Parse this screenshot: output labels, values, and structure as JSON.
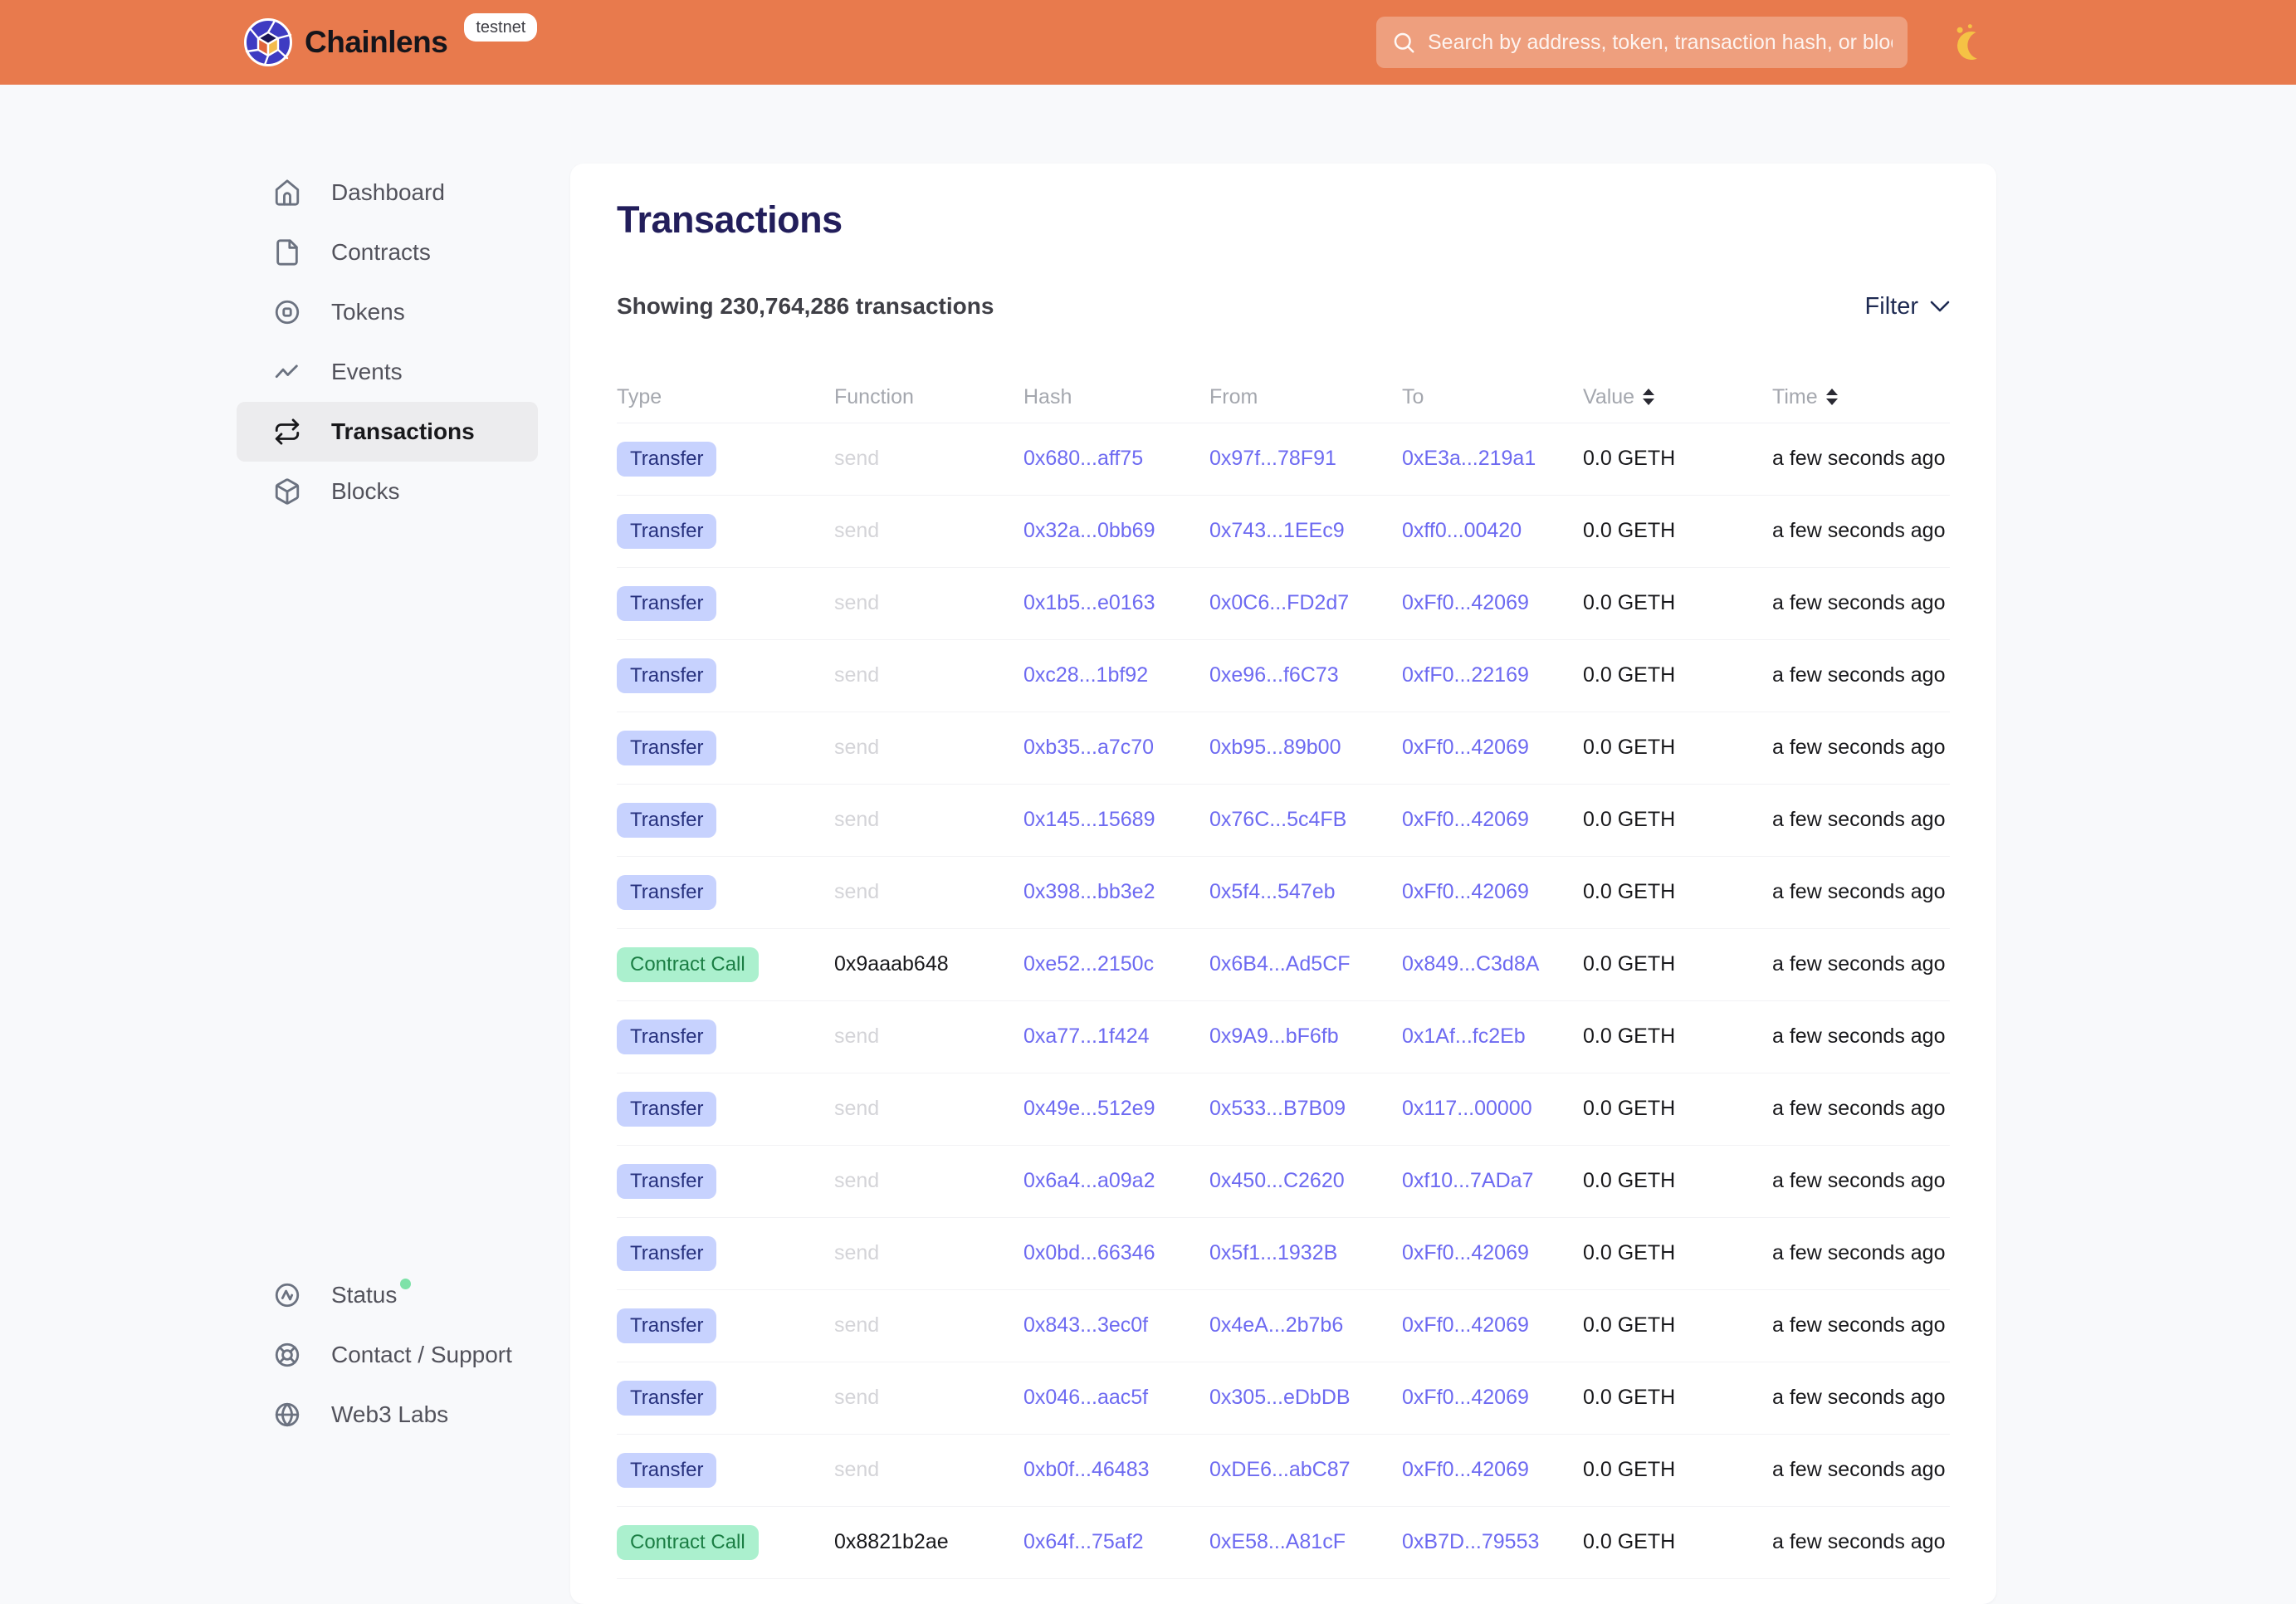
{
  "header": {
    "brand": "Chainlens",
    "badge": "testnet",
    "search_placeholder": "Search by address, token, transaction hash, or block number"
  },
  "sidebar": {
    "items": [
      {
        "label": "Dashboard",
        "icon": "home",
        "active": false
      },
      {
        "label": "Contracts",
        "icon": "document",
        "active": false
      },
      {
        "label": "Tokens",
        "icon": "token",
        "active": false
      },
      {
        "label": "Events",
        "icon": "activity",
        "active": false
      },
      {
        "label": "Transactions",
        "icon": "repeat",
        "active": true
      },
      {
        "label": "Blocks",
        "icon": "cube",
        "active": false
      }
    ],
    "footer_items": [
      {
        "label": "Status",
        "icon": "status",
        "indicator": "online"
      },
      {
        "label": "Contact / Support",
        "icon": "lifebuoy"
      },
      {
        "label": "Web3 Labs",
        "icon": "globe"
      }
    ]
  },
  "main": {
    "title": "Transactions",
    "summary": "Showing 230,764,286 transactions",
    "filter_label": "Filter",
    "table": {
      "columns": [
        "Type",
        "Function",
        "Hash",
        "From",
        "To",
        "Value",
        "Time"
      ],
      "sortable_columns": [
        "Value",
        "Time"
      ],
      "rows": [
        {
          "type": "Transfer",
          "function": "send",
          "hash": "0x680...aff75",
          "from": "0x97f...78F91",
          "to": "0xE3a...219a1",
          "value": "0.0 GETH",
          "time": "a few seconds ago"
        },
        {
          "type": "Transfer",
          "function": "send",
          "hash": "0x32a...0bb69",
          "from": "0x743...1EEc9",
          "to": "0xff0...00420",
          "value": "0.0 GETH",
          "time": "a few seconds ago"
        },
        {
          "type": "Transfer",
          "function": "send",
          "hash": "0x1b5...e0163",
          "from": "0x0C6...FD2d7",
          "to": "0xFf0...42069",
          "value": "0.0 GETH",
          "time": "a few seconds ago"
        },
        {
          "type": "Transfer",
          "function": "send",
          "hash": "0xc28...1bf92",
          "from": "0xe96...f6C73",
          "to": "0xfF0...22169",
          "value": "0.0 GETH",
          "time": "a few seconds ago"
        },
        {
          "type": "Transfer",
          "function": "send",
          "hash": "0xb35...a7c70",
          "from": "0xb95...89b00",
          "to": "0xFf0...42069",
          "value": "0.0 GETH",
          "time": "a few seconds ago"
        },
        {
          "type": "Transfer",
          "function": "send",
          "hash": "0x145...15689",
          "from": "0x76C...5c4FB",
          "to": "0xFf0...42069",
          "value": "0.0 GETH",
          "time": "a few seconds ago"
        },
        {
          "type": "Transfer",
          "function": "send",
          "hash": "0x398...bb3e2",
          "from": "0x5f4...547eb",
          "to": "0xFf0...42069",
          "value": "0.0 GETH",
          "time": "a few seconds ago"
        },
        {
          "type": "Contract Call",
          "function": "0x9aaab648",
          "hash": "0xe52...2150c",
          "from": "0x6B4...Ad5CF",
          "to": "0x849...C3d8A",
          "value": "0.0 GETH",
          "time": "a few seconds ago"
        },
        {
          "type": "Transfer",
          "function": "send",
          "hash": "0xa77...1f424",
          "from": "0x9A9...bF6fb",
          "to": "0x1Af...fc2Eb",
          "value": "0.0 GETH",
          "time": "a few seconds ago"
        },
        {
          "type": "Transfer",
          "function": "send",
          "hash": "0x49e...512e9",
          "from": "0x533...B7B09",
          "to": "0x117...00000",
          "value": "0.0 GETH",
          "time": "a few seconds ago"
        },
        {
          "type": "Transfer",
          "function": "send",
          "hash": "0x6a4...a09a2",
          "from": "0x450...C2620",
          "to": "0xf10...7ADa7",
          "value": "0.0 GETH",
          "time": "a few seconds ago"
        },
        {
          "type": "Transfer",
          "function": "send",
          "hash": "0x0bd...66346",
          "from": "0x5f1...1932B",
          "to": "0xFf0...42069",
          "value": "0.0 GETH",
          "time": "a few seconds ago"
        },
        {
          "type": "Transfer",
          "function": "send",
          "hash": "0x843...3ec0f",
          "from": "0x4eA...2b7b6",
          "to": "0xFf0...42069",
          "value": "0.0 GETH",
          "time": "a few seconds ago"
        },
        {
          "type": "Transfer",
          "function": "send",
          "hash": "0x046...aac5f",
          "from": "0x305...eDbDB",
          "to": "0xFf0...42069",
          "value": "0.0 GETH",
          "time": "a few seconds ago"
        },
        {
          "type": "Transfer",
          "function": "send",
          "hash": "0xb0f...46483",
          "from": "0xDE6...abC87",
          "to": "0xFf0...42069",
          "value": "0.0 GETH",
          "time": "a few seconds ago"
        },
        {
          "type": "Contract Call",
          "function": "0x8821b2ae",
          "hash": "0x64f...75af2",
          "from": "0xE58...A81cF",
          "to": "0xB7D...79553",
          "value": "0.0 GETH",
          "time": "a few seconds ago"
        }
      ]
    }
  },
  "colors": {
    "header_bg": "#E87A4D",
    "page_bg": "#F8F9FB",
    "card_bg": "#FFFFFF",
    "title_text": "#221E5B",
    "link": "#6D6AF1",
    "transfer_badge_bg": "#C7D2FE",
    "transfer_badge_text": "#27317E",
    "contract_badge_bg": "#ABF0CE",
    "contract_badge_text": "#1B7E44",
    "muted_function": "#D4D4D8",
    "status_dot": "#7EE2A8",
    "active_item_bg": "#ECECEE",
    "moon": "#F5C245"
  }
}
